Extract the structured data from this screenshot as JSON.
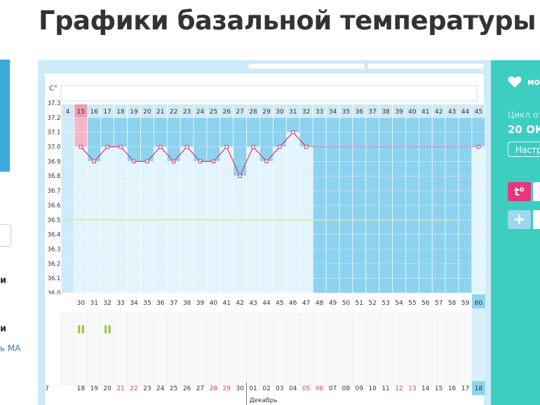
{
  "page": {
    "title": "Графики базальной температуры"
  },
  "left_panel": {
    "text1": "и",
    "text2": "и",
    "link": "ь МА"
  },
  "sidebar": {
    "label": "мо",
    "cycle": "Цикл от",
    "date": "20 ОК",
    "settings_button": "Настр",
    "temp_button": "t⁰",
    "add_button": "+"
  },
  "colors": {
    "accent": "#3dcdc1",
    "grid_fill": "#cdebf8",
    "future_fill": "#8dd3ef",
    "temp_line": "#d8367a",
    "highlight": "#f6b6c9"
  },
  "chart_data": {
    "type": "line",
    "title": "",
    "ylabel": "С°",
    "ylim": [
      36.0,
      37.3
    ],
    "y_ticks": [
      "37.3",
      "37.2",
      "37.1",
      "37.0",
      "36.9",
      "36.8",
      "36.7",
      "36.6",
      "36.5",
      "36.4",
      "36.3",
      "36.2",
      "36.1",
      "36.0"
    ],
    "top_day_labels": [
      "4",
      "15",
      "16",
      "17",
      "18",
      "19",
      "20",
      "21",
      "22",
      "23",
      "24",
      "25",
      "26",
      "27",
      "28",
      "29",
      "30",
      "31",
      "32",
      "33",
      "34",
      "35",
      "36",
      "37",
      "38",
      "39",
      "40",
      "41",
      "42",
      "43",
      "44",
      "45"
    ],
    "bottom_day_labels": [
      "30",
      "31",
      "32",
      "33",
      "34",
      "35",
      "36",
      "37",
      "38",
      "39",
      "40",
      "41",
      "42",
      "43",
      "44",
      "45",
      "46",
      "47",
      "48",
      "49",
      "50",
      "51",
      "52",
      "53",
      "54",
      "55",
      "56",
      "57",
      "58",
      "59",
      "60"
    ],
    "date_labels": [
      "7",
      "18",
      "19",
      "20",
      "21",
      "22",
      "23",
      "24",
      "25",
      "26",
      "27",
      "28",
      "29",
      "30",
      "01",
      "02",
      "03",
      "04",
      "05",
      "06",
      "07",
      "08",
      "09",
      "10",
      "11",
      "12",
      "13",
      "14",
      "15",
      "16",
      "17",
      "18"
    ],
    "red_dates": [
      "21",
      "22",
      "28",
      "29",
      "05",
      "06",
      "12",
      "13"
    ],
    "month_label": "Декабрь",
    "x": [
      "15",
      "16",
      "17",
      "18",
      "19",
      "20",
      "21",
      "22",
      "23",
      "24",
      "25",
      "26",
      "27",
      "28",
      "29",
      "30",
      "31",
      "32"
    ],
    "values": [
      37.0,
      36.9,
      37.0,
      37.0,
      36.9,
      36.9,
      37.0,
      36.9,
      37.0,
      36.9,
      36.9,
      37.0,
      36.8,
      37.0,
      36.9,
      37.0,
      37.1,
      37.0
    ],
    "projected": {
      "x": "45",
      "value": 37.0
    },
    "coverline": 36.5,
    "highlight_day": "15",
    "current_day": "60",
    "current_date": "18",
    "symptom_days": [
      "30",
      "32"
    ],
    "symptom_icon": "pause-marks-icon",
    "grid": true
  }
}
